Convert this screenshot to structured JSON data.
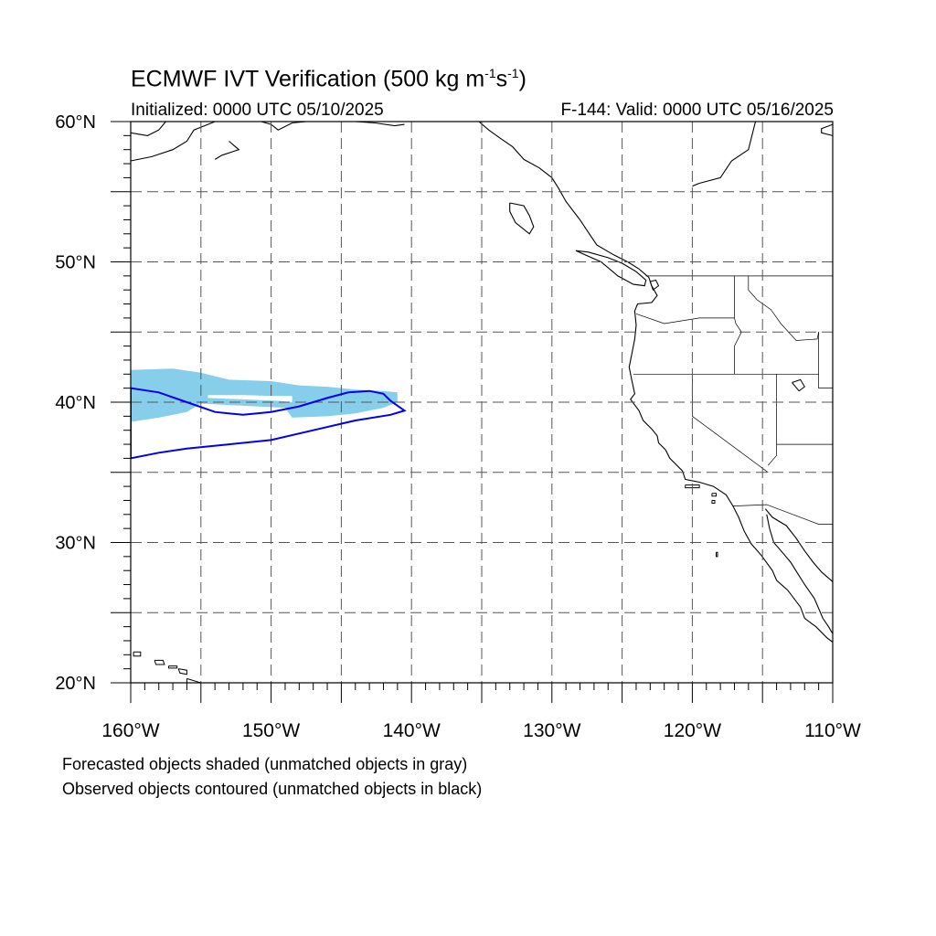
{
  "title": {
    "text": "ECMWF IVT Verification (500 kg m",
    "sup1": "-1",
    "mid": "s",
    "sup2": "-1",
    "end": ")"
  },
  "subtitle_left": "Initialized: 0000 UTC 05/10/2025",
  "subtitle_right": "F-144: Valid: 0000 UTC 05/16/2025",
  "footnotes": [
    "Forecasted objects shaded (unmatched objects in gray)",
    "Observed objects contoured (unmatched objects in black)"
  ],
  "map": {
    "extent": {
      "lon_min": -160,
      "lon_max": -110,
      "lat_min": 20,
      "lat_max": 60
    },
    "lat_ticks": [
      {
        "value": 20,
        "label": "20°N"
      },
      {
        "value": 30,
        "label": "30°N"
      },
      {
        "value": 40,
        "label": "40°N"
      },
      {
        "value": 50,
        "label": "50°N"
      },
      {
        "value": 60,
        "label": "60°N"
      }
    ],
    "lon_ticks": [
      {
        "value": -160,
        "label": "160°W"
      },
      {
        "value": -150,
        "label": "150°W"
      },
      {
        "value": -140,
        "label": "140°W"
      },
      {
        "value": -130,
        "label": "130°W"
      },
      {
        "value": -120,
        "label": "120°W"
      },
      {
        "value": -110,
        "label": "110°W"
      }
    ],
    "grid_lats": [
      25,
      30,
      35,
      40,
      45,
      50,
      55
    ],
    "grid_lons": [
      -155,
      -150,
      -145,
      -140,
      -135,
      -130,
      -125,
      -120,
      -115
    ],
    "colors": {
      "forecast_fill": "#87ceeb",
      "observed_contour": "#0000ee",
      "coastline": "#000000",
      "grid": "#555555"
    },
    "forecast_object": {
      "label": "forecast IVT object (matched)",
      "outline": [
        [
          -160,
          42.3
        ],
        [
          -157,
          42.4
        ],
        [
          -155,
          42.1
        ],
        [
          -153,
          41.6
        ],
        [
          -150,
          41.5
        ],
        [
          -148,
          41.2
        ],
        [
          -146,
          41.1
        ],
        [
          -144,
          40.9
        ],
        [
          -142,
          40.8
        ],
        [
          -141,
          40.7
        ],
        [
          -141,
          40.0
        ],
        [
          -142,
          39.6
        ],
        [
          -144,
          39.2
        ],
        [
          -146,
          39.0
        ],
        [
          -148.5,
          38.9
        ],
        [
          -149,
          39.6
        ],
        [
          -151,
          39.7
        ],
        [
          -153,
          39.8
        ],
        [
          -155,
          39.9
        ],
        [
          -156,
          39.3
        ],
        [
          -158,
          38.9
        ],
        [
          -160,
          38.6
        ]
      ],
      "gap": [
        [
          -154.5,
          40.3
        ],
        [
          -152,
          40.2
        ],
        [
          -149.5,
          40.1
        ],
        [
          -148.5,
          40.0
        ],
        [
          -148.5,
          40.45
        ],
        [
          -150,
          40.45
        ],
        [
          -152,
          40.5
        ],
        [
          -154.5,
          40.5
        ]
      ]
    },
    "observed_object": {
      "label": "observed IVT object (matched)",
      "outline": [
        [
          -160,
          41.0
        ],
        [
          -158,
          40.7
        ],
        [
          -156,
          40.0
        ],
        [
          -154,
          39.3
        ],
        [
          -152,
          39.1
        ],
        [
          -150,
          39.3
        ],
        [
          -148,
          39.7
        ],
        [
          -146,
          40.3
        ],
        [
          -144.5,
          40.7
        ],
        [
          -143,
          40.8
        ],
        [
          -142,
          40.6
        ],
        [
          -141.5,
          40.1
        ],
        [
          -140.5,
          39.4
        ],
        [
          -141.5,
          39.1
        ],
        [
          -144,
          38.7
        ],
        [
          -147,
          38.0
        ],
        [
          -150,
          37.3
        ],
        [
          -153,
          37.0
        ],
        [
          -156,
          36.7
        ],
        [
          -158,
          36.4
        ],
        [
          -160,
          36.0
        ]
      ]
    },
    "coastlines": [
      [
        [
          -115.5,
          60
        ],
        [
          -116.0,
          58
        ],
        [
          -117.2,
          57.2
        ],
        [
          -118.0,
          56.0
        ],
        [
          -119.5,
          55.6
        ],
        [
          -120.0,
          55.4
        ]
      ],
      [
        [
          -135.2,
          60
        ],
        [
          -134.5,
          59.4
        ],
        [
          -133.8,
          58.9
        ],
        [
          -132.8,
          58.2
        ],
        [
          -132.0,
          57.3
        ],
        [
          -130.9,
          56.7
        ],
        [
          -130.0,
          56.0
        ],
        [
          -129.5,
          55.2
        ],
        [
          -129.0,
          54.3
        ],
        [
          -128.0,
          53.0
        ],
        [
          -127.2,
          51.8
        ],
        [
          -126.8,
          51.2
        ],
        [
          -125.6,
          50.5
        ],
        [
          -124.6,
          50.0
        ],
        [
          -123.8,
          49.5
        ],
        [
          -123.1,
          48.9
        ],
        [
          -122.9,
          48.3
        ],
        [
          -122.5,
          47.6
        ],
        [
          -122.9,
          47.1
        ],
        [
          -123.9,
          47.0
        ],
        [
          -124.1,
          46.5
        ],
        [
          -124.0,
          45.5
        ],
        [
          -124.1,
          44.5
        ],
        [
          -124.3,
          43.5
        ],
        [
          -124.5,
          42.5
        ],
        [
          -124.3,
          41.5
        ],
        [
          -124.1,
          40.6
        ],
        [
          -124.4,
          40.2
        ],
        [
          -123.8,
          39.4
        ],
        [
          -123.5,
          38.7
        ],
        [
          -122.9,
          38.1
        ],
        [
          -122.5,
          37.6
        ],
        [
          -122.4,
          37.1
        ],
        [
          -121.9,
          36.6
        ],
        [
          -121.6,
          36.0
        ],
        [
          -120.7,
          35.1
        ],
        [
          -120.5,
          34.5
        ],
        [
          -119.5,
          34.3
        ],
        [
          -118.5,
          34.0
        ],
        [
          -117.6,
          33.4
        ],
        [
          -117.1,
          32.6
        ],
        [
          -116.7,
          31.8
        ],
        [
          -116.3,
          30.8
        ],
        [
          -115.8,
          29.9
        ],
        [
          -115.1,
          29.1
        ],
        [
          -114.3,
          28.0
        ],
        [
          -114.0,
          27.3
        ],
        [
          -113.2,
          26.6
        ],
        [
          -112.3,
          25.4
        ],
        [
          -112.0,
          24.6
        ],
        [
          -111.2,
          24.0
        ],
        [
          -110.4,
          23.2
        ],
        [
          -110.0,
          22.9
        ]
      ],
      [
        [
          -114.7,
          32.0
        ],
        [
          -114.5,
          31.0
        ],
        [
          -114.2,
          30.0
        ],
        [
          -113.5,
          29.2
        ],
        [
          -113.0,
          28.6
        ],
        [
          -112.5,
          27.8
        ],
        [
          -112.0,
          27.0
        ],
        [
          -111.3,
          26.0
        ],
        [
          -110.7,
          24.6
        ],
        [
          -110.3,
          24.0
        ],
        [
          -110.0,
          23.5
        ]
      ],
      [
        [
          -114.8,
          32.4
        ],
        [
          -114.3,
          31.8
        ],
        [
          -113.3,
          31.2
        ],
        [
          -112.6,
          30.3
        ],
        [
          -112.0,
          29.4
        ],
        [
          -111.4,
          28.6
        ],
        [
          -110.8,
          27.9
        ],
        [
          -110.0,
          27.2
        ]
      ],
      [
        [
          -128.3,
          50.8
        ],
        [
          -126.5,
          50.0
        ],
        [
          -125.3,
          49.0
        ],
        [
          -124.2,
          48.4
        ],
        [
          -123.4,
          48.3
        ],
        [
          -123.3,
          48.7
        ],
        [
          -124.0,
          49.3
        ],
        [
          -125.0,
          49.9
        ],
        [
          -126.0,
          50.3
        ],
        [
          -127.4,
          50.7
        ],
        [
          -128.3,
          50.8
        ]
      ],
      [
        [
          -133.0,
          54.2
        ],
        [
          -132.0,
          54.0
        ],
        [
          -131.6,
          53.3
        ],
        [
          -131.3,
          52.5
        ],
        [
          -131.6,
          52.0
        ],
        [
          -132.6,
          52.8
        ],
        [
          -133.0,
          53.6
        ],
        [
          -133.0,
          54.2
        ]
      ],
      [
        [
          -160,
          57.2
        ],
        [
          -158.5,
          57.5
        ],
        [
          -157.0,
          58.0
        ],
        [
          -156.0,
          58.6
        ],
        [
          -155.5,
          59.4
        ],
        [
          -154.5,
          59.8
        ],
        [
          -154.0,
          60
        ]
      ],
      [
        [
          -160,
          59.2
        ],
        [
          -158.8,
          59.0
        ],
        [
          -158.0,
          59.4
        ],
        [
          -157.5,
          60
        ]
      ],
      [
        [
          -153.0,
          58.6
        ],
        [
          -152.3,
          58.0
        ],
        [
          -153.5,
          57.6
        ],
        [
          -154.0,
          57.3
        ]
      ],
      [
        [
          -150.7,
          60
        ],
        [
          -150.0,
          59.8
        ],
        [
          -149.5,
          59.4
        ],
        [
          -148.5,
          59.9
        ],
        [
          -147.5,
          60
        ]
      ],
      [
        [
          -144.0,
          60
        ],
        [
          -142.6,
          59.9
        ],
        [
          -141.2,
          59.7
        ],
        [
          -140.5,
          59.8
        ]
      ],
      [
        [
          -110.0,
          59.8
        ],
        [
          -110.8,
          59.5
        ],
        [
          -110.8,
          59.2
        ],
        [
          -110.0,
          59.0
        ]
      ]
    ],
    "islands": [
      [
        [
          -159.8,
          22.2
        ],
        [
          -159.3,
          22.2
        ],
        [
          -159.3,
          21.9
        ],
        [
          -159.8,
          21.9
        ],
        [
          -159.8,
          22.2
        ]
      ],
      [
        [
          -158.3,
          21.6
        ],
        [
          -157.7,
          21.6
        ],
        [
          -157.6,
          21.3
        ],
        [
          -158.2,
          21.3
        ],
        [
          -158.3,
          21.6
        ]
      ],
      [
        [
          -157.3,
          21.2
        ],
        [
          -156.7,
          21.2
        ],
        [
          -156.7,
          21.05
        ],
        [
          -157.3,
          21.05
        ],
        [
          -157.3,
          21.2
        ]
      ],
      [
        [
          -156.6,
          21.0
        ],
        [
          -156.0,
          20.9
        ],
        [
          -156.0,
          20.6
        ],
        [
          -156.5,
          20.7
        ],
        [
          -156.6,
          21.0
        ]
      ],
      [
        [
          -156.0,
          20.3
        ],
        [
          -155.0,
          20.0
        ],
        [
          -154.8,
          19.6
        ],
        [
          -155.6,
          19.4
        ],
        [
          -156.0,
          19.9
        ],
        [
          -156.0,
          20.3
        ]
      ],
      [
        [
          -120.5,
          34.1
        ],
        [
          -119.5,
          34.1
        ],
        [
          -119.5,
          33.9
        ],
        [
          -120.5,
          33.9
        ],
        [
          -120.5,
          34.1
        ]
      ],
      [
        [
          -118.6,
          33.5
        ],
        [
          -118.3,
          33.5
        ],
        [
          -118.3,
          33.3
        ],
        [
          -118.6,
          33.3
        ],
        [
          -118.6,
          33.5
        ]
      ],
      [
        [
          -118.6,
          33.0
        ],
        [
          -118.4,
          33.0
        ],
        [
          -118.4,
          32.8
        ],
        [
          -118.6,
          32.8
        ],
        [
          -118.6,
          33.0
        ]
      ],
      [
        [
          -118.3,
          29.3
        ],
        [
          -118.2,
          29.3
        ],
        [
          -118.2,
          29.0
        ],
        [
          -118.3,
          29.0
        ],
        [
          -118.3,
          29.3
        ]
      ],
      [
        [
          -112.9,
          41.4
        ],
        [
          -112.3,
          41.6
        ],
        [
          -112.0,
          41.1
        ],
        [
          -112.4,
          40.8
        ],
        [
          -112.9,
          41.4
        ]
      ],
      [
        [
          -123.0,
          48.6
        ],
        [
          -122.6,
          48.7
        ],
        [
          -122.4,
          48.3
        ],
        [
          -122.8,
          48.0
        ],
        [
          -123.0,
          48.6
        ]
      ]
    ],
    "borders": [
      [
        [
          -123.3,
          49.0
        ],
        [
          -110,
          49.0
        ]
      ],
      [
        [
          -117.0,
          49.0
        ],
        [
          -117.0,
          46.0
        ],
        [
          -116.9,
          45.6
        ],
        [
          -116.5,
          45.0
        ],
        [
          -117.0,
          44.0
        ],
        [
          -117.0,
          42.0
        ]
      ],
      [
        [
          -124.0,
          46.3
        ],
        [
          -122.0,
          45.6
        ],
        [
          -119.5,
          46.0
        ],
        [
          -117.0,
          46.0
        ]
      ],
      [
        [
          -124.2,
          42.0
        ],
        [
          -111.0,
          42.0
        ]
      ],
      [
        [
          -120.0,
          42.0
        ],
        [
          -120.0,
          39.0
        ],
        [
          -114.6,
          35.0
        ]
      ],
      [
        [
          -114.0,
          42.0
        ],
        [
          -114.0,
          36.2
        ],
        [
          -114.6,
          35.5
        ]
      ],
      [
        [
          -116.0,
          49.0
        ],
        [
          -116.0,
          48.0
        ],
        [
          -115.4,
          47.3
        ],
        [
          -114.4,
          46.6
        ],
        [
          -113.7,
          45.6
        ],
        [
          -112.6,
          44.4
        ],
        [
          -111.1,
          44.5
        ],
        [
          -111.0,
          45.0
        ]
      ],
      [
        [
          -111.0,
          45.0
        ],
        [
          -111.0,
          41.0
        ],
        [
          -110.0,
          41.0
        ]
      ],
      [
        [
          -114.0,
          37.0
        ],
        [
          -110.0,
          37.0
        ]
      ],
      [
        [
          -117.1,
          32.6
        ],
        [
          -114.7,
          32.7
        ],
        [
          -111.0,
          31.3
        ],
        [
          -110.0,
          31.3
        ]
      ]
    ]
  }
}
